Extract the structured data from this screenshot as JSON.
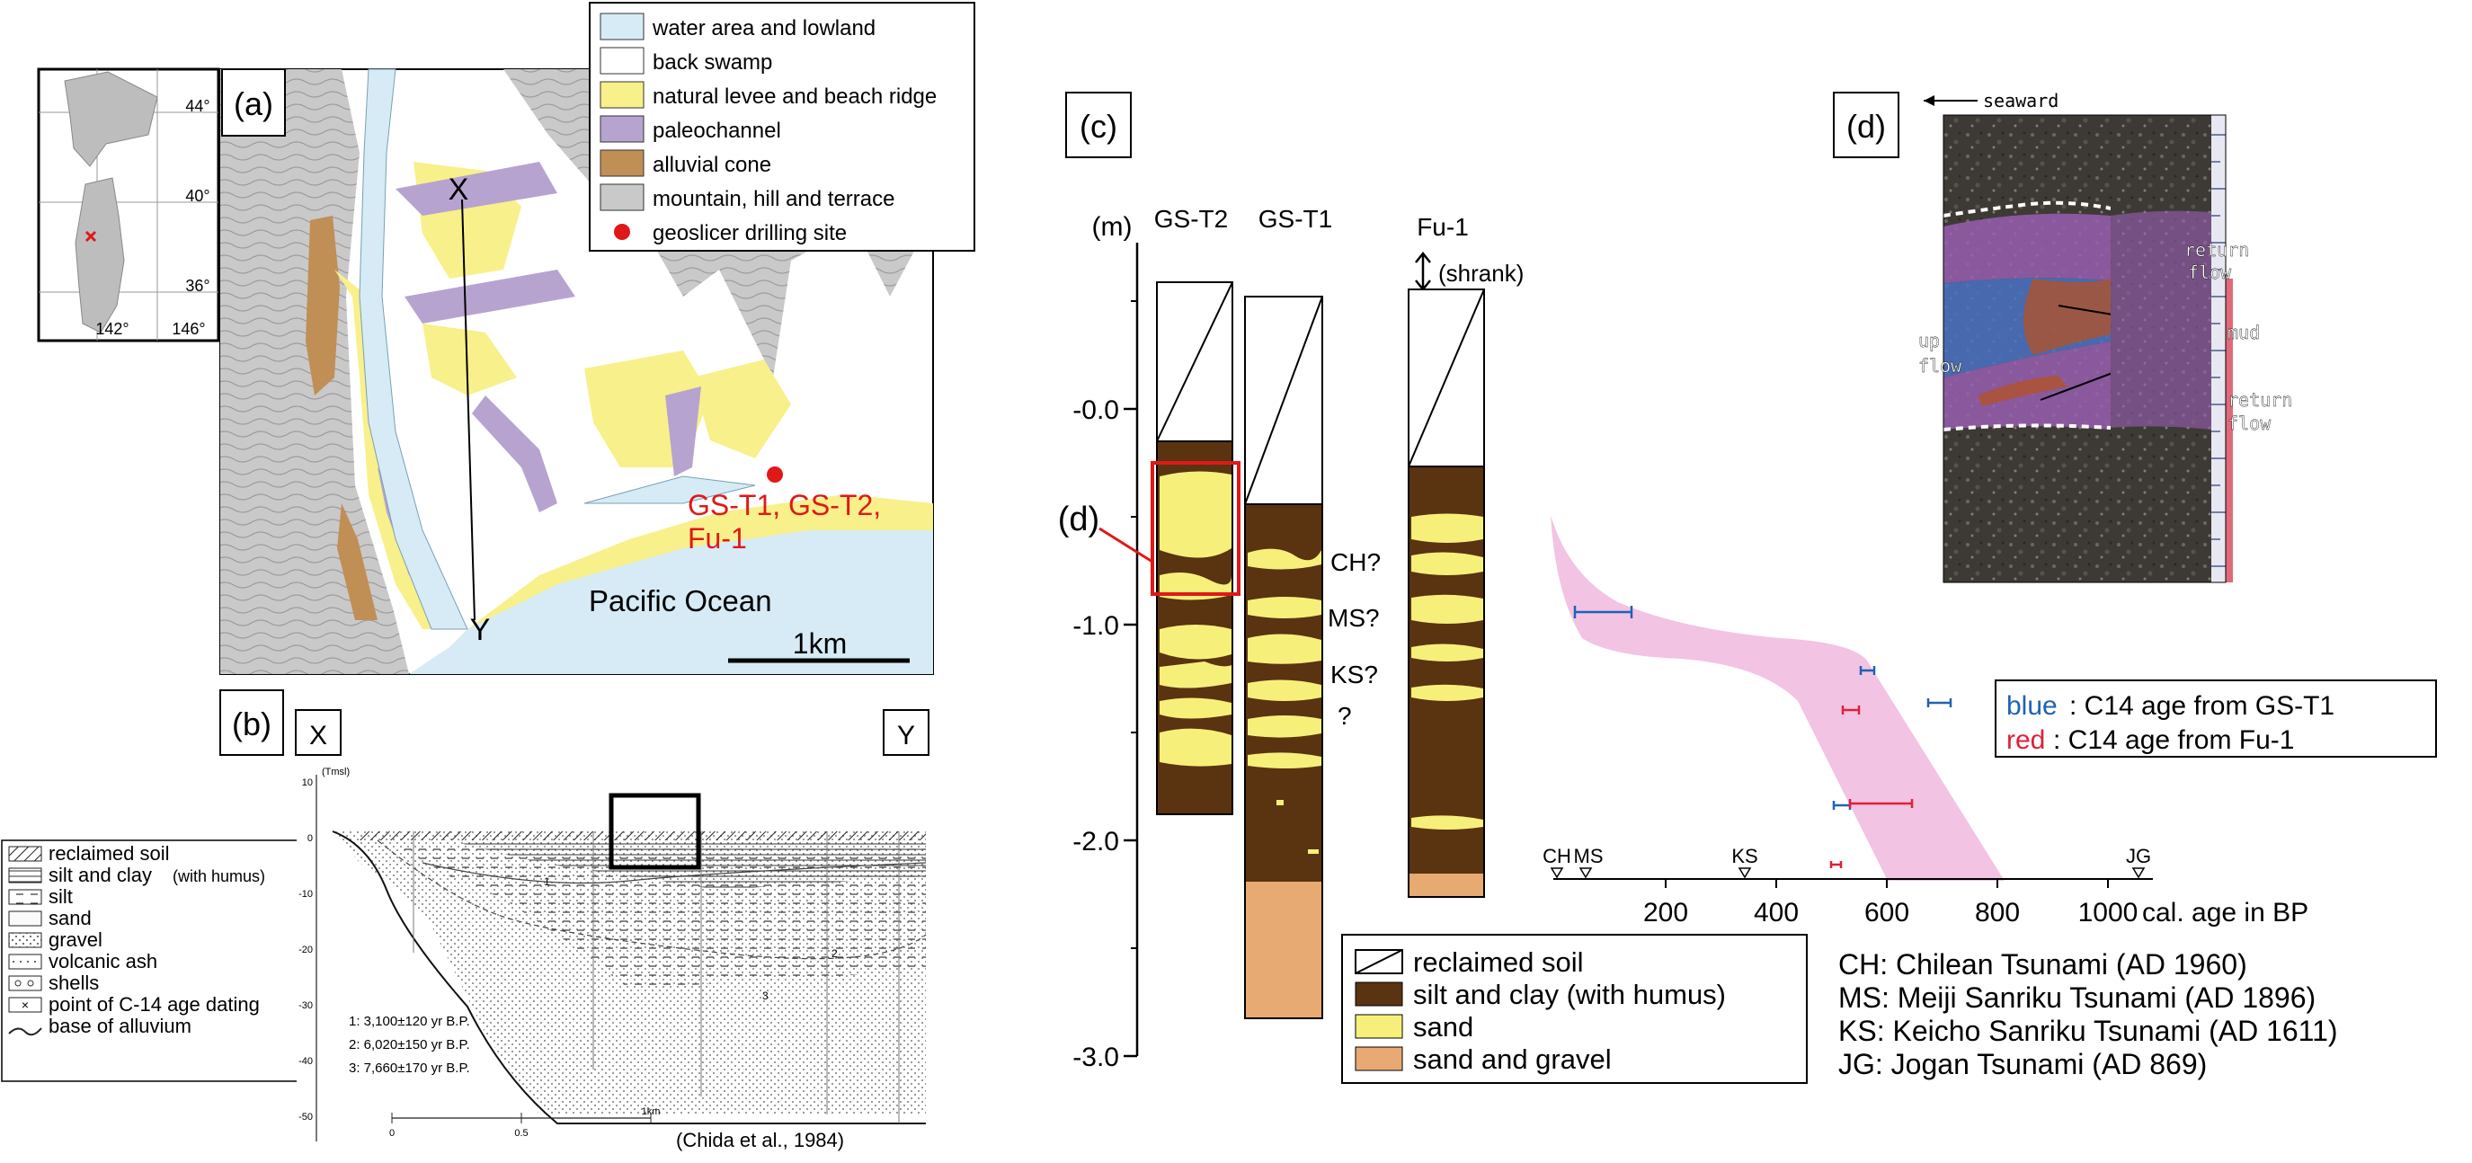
{
  "panel_a": {
    "label": "(a)",
    "inset_lat": [
      "44°",
      "40°",
      "36°"
    ],
    "inset_lon": [
      "142°",
      "146°"
    ],
    "legend": [
      {
        "text": "water area and lowland",
        "color": "#d6ebf5"
      },
      {
        "text": "back swamp",
        "color": "#ffffff"
      },
      {
        "text": "natural levee and beach ridge",
        "color": "#f8f08a"
      },
      {
        "text": "paleochannel",
        "color": "#b7a3d0"
      },
      {
        "text": "alluvial cone",
        "color": "#c08f55"
      },
      {
        "text": "mountain, hill and terrace",
        "color": "#c9c9c9"
      },
      {
        "text": "geoslicer drilling site",
        "color": "#e01818"
      }
    ],
    "point_x": "X",
    "point_y": "Y",
    "site_label_1": "GS-T1, GS-T2,",
    "site_label_2": "Fu-1",
    "ocean": "Pacific Ocean",
    "scale": "1km"
  },
  "panel_b": {
    "label": "(b)",
    "x": "X",
    "y": "Y",
    "legend": [
      "reclaimed soil",
      "silt and clay",
      "(with humus)",
      "silt",
      "sand",
      "gravel",
      "volcanic ash",
      "shells",
      "point of C-14 age dating",
      "base of alluvium"
    ],
    "axis_unit": "(Tmsl)",
    "depth_ticks": [
      "10",
      "0",
      "-10",
      "-20",
      "-30",
      "-40",
      "-50"
    ],
    "dates": [
      "1: 3,100±120 yr B.P.",
      "2: 6,020±150 yr B.P.",
      "3: 7,660±170 yr B.P."
    ],
    "distance_ticks": [
      "0",
      "0.5",
      "1km"
    ],
    "point_labels": [
      "1",
      "2",
      "3"
    ],
    "citation": "(Chida et al., 1984)"
  },
  "panel_c": {
    "label": "(c)",
    "unit": "(m)",
    "depth_ticks": [
      "-0.0",
      "-1.0",
      "-2.0",
      "-3.0"
    ],
    "cores": [
      "GS-T2",
      "GS-T1",
      "Fu-1"
    ],
    "shrank": "(shrank)",
    "d_callout": "(d)",
    "events": [
      "CH?",
      "MS?",
      "KS?",
      "?"
    ],
    "legend": [
      {
        "text": "reclaimed soil",
        "color": "#ffffff"
      },
      {
        "text": "silt and clay (with humus)",
        "color": "#5a3311"
      },
      {
        "text": "sand",
        "color": "#f6f07a"
      },
      {
        "text": "sand and gravel",
        "color": "#e6aa72"
      }
    ],
    "age_ticks": [
      "200",
      "400",
      "600",
      "800",
      "1000"
    ],
    "age_unit": "cal. age in BP",
    "tsunami_marks": [
      "CH",
      "MS",
      "KS",
      "JG"
    ],
    "c14_legend": {
      "blue_key": "blue",
      "blue_text": ":  C14 age from GS-T1",
      "red_key": "red",
      "red_text": ":    C14 age from Fu-1"
    },
    "tsunami_list": [
      "CH: Chilean Tsunami (AD 1960)",
      "MS: Meiji Sanriku Tsunami  (AD 1896)",
      "KS: Keicho Sanriku Tsunami  (AD 1611)",
      "JG: Jogan Tsunami (AD 869)"
    ]
  },
  "panel_d": {
    "label": "(d)",
    "seaward": "seaward",
    "return_flow_top_1": "return",
    "return_flow_top_2": "flow",
    "mud": "mud",
    "up_flow_1": "up",
    "up_flow_2": "flow",
    "return_flow_bot_1": "return",
    "return_flow_bot_2": "flow"
  },
  "colors": {
    "water": "#d6ebf5",
    "levee": "#f8f08a",
    "paleochannel": "#b7a3d0",
    "cone": "#c08f55",
    "mountain": "#c9c9c9",
    "site": "#e01818",
    "silt": "#5a3311",
    "sand": "#f6f07a",
    "gravel": "#e6aa72",
    "blue": "#1f62b4",
    "red": "#e0203a",
    "pink": "#f0b9de"
  }
}
